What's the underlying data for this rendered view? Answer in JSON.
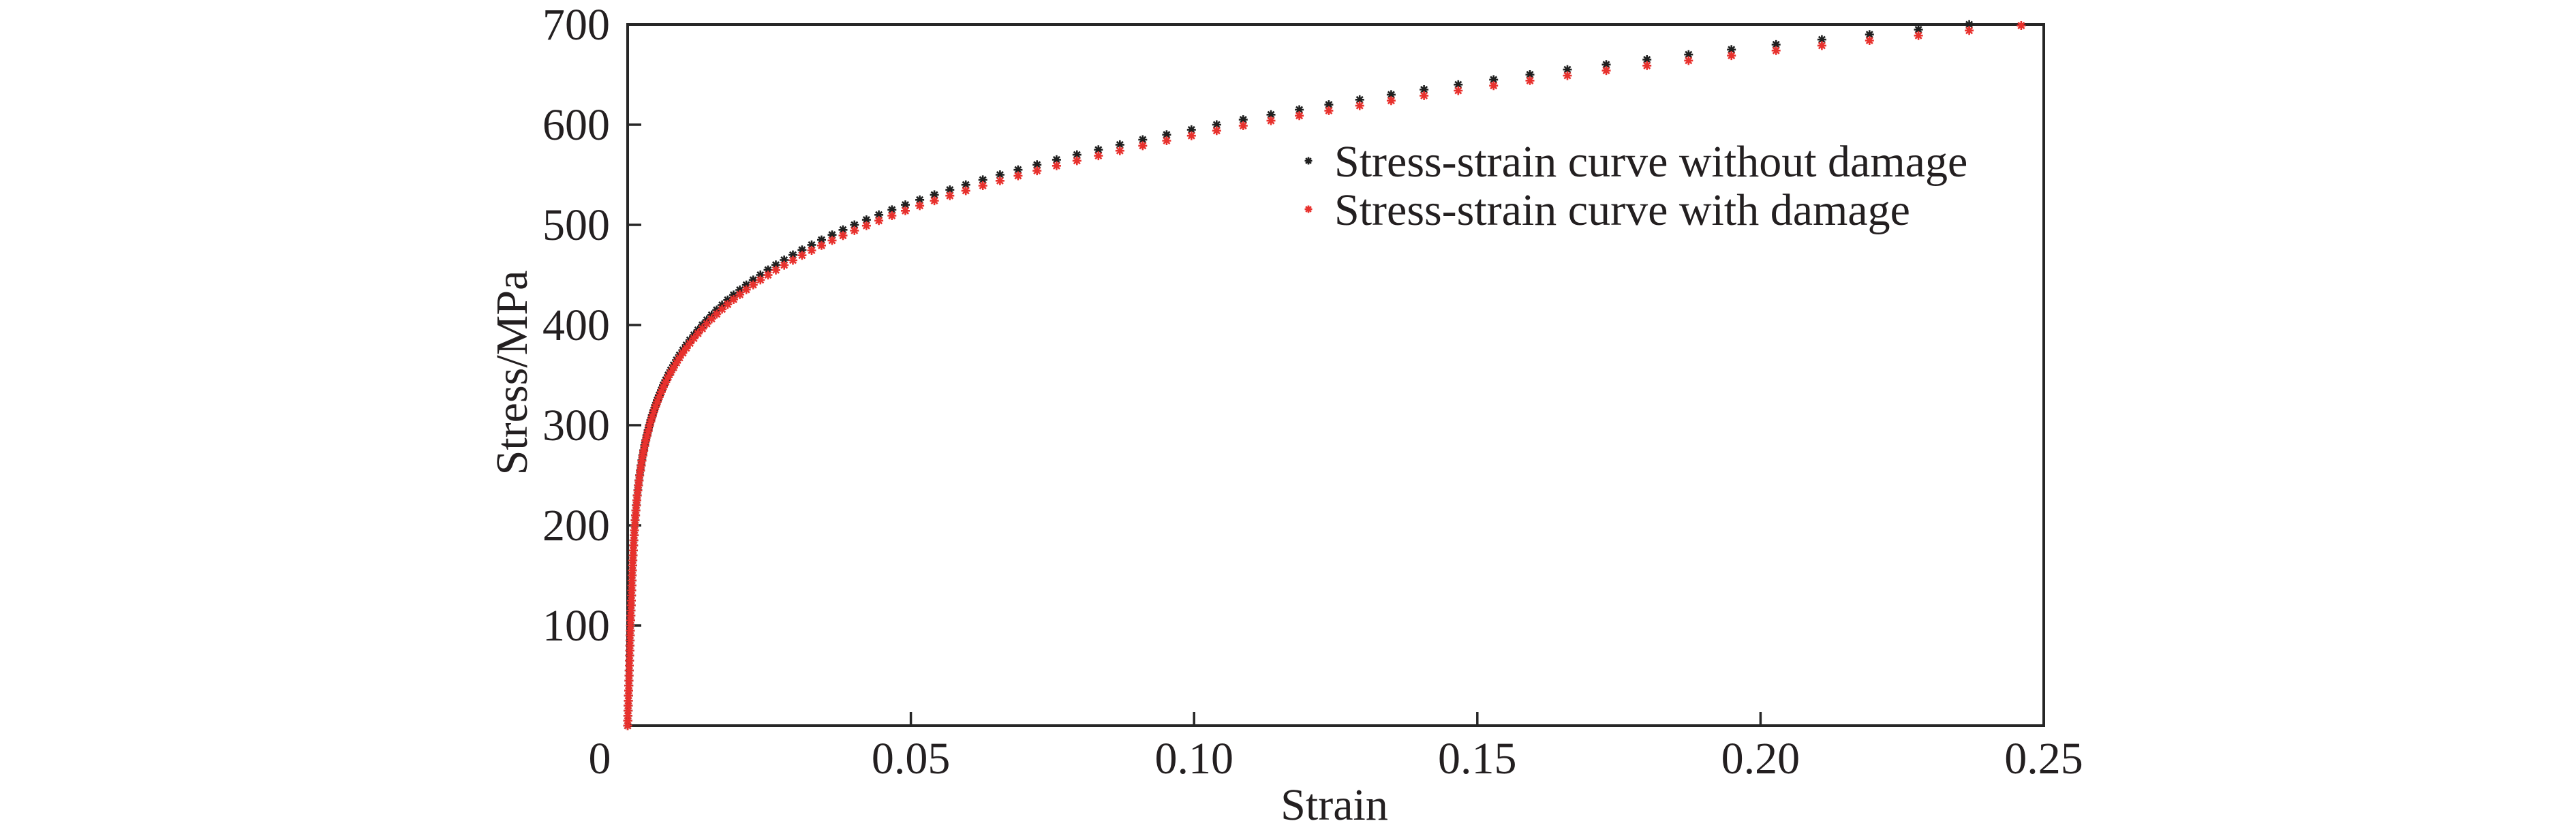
{
  "chart_data": {
    "type": "scatter",
    "title": "",
    "xlabel": "Strain",
    "ylabel": "Stress/MPa",
    "xlim": [
      0,
      0.25
    ],
    "ylim": [
      0,
      700
    ],
    "grid": false,
    "legend_position": "top-right",
    "xticks": [
      0,
      0.05,
      0.1,
      0.15,
      0.2,
      0.25
    ],
    "xtick_labels": [
      "0",
      "0.05",
      "0.10",
      "0.15",
      "0.20",
      "0.25"
    ],
    "yticks": [
      100,
      200,
      300,
      400,
      500,
      600,
      700
    ],
    "ytick_labels": [
      "100",
      "200",
      "300",
      "400",
      "500",
      "600",
      "700"
    ],
    "series": [
      {
        "name": "Stress-strain curve without damage",
        "color": "#1f1f1f",
        "marker": "asterisk",
        "x": [
          0,
          3e-05,
          5e-05,
          8e-05,
          0.0001,
          0.00013,
          0.00015,
          0.00018,
          0.0002,
          0.00023,
          0.00025,
          0.00028,
          0.0003,
          0.00033,
          0.00035,
          0.00038,
          0.0004,
          0.00043,
          0.00045,
          0.00048,
          0.0005,
          0.00053,
          0.00056,
          0.00059,
          0.00062,
          0.00065,
          0.00068,
          0.00071,
          0.00074,
          0.00077,
          0.0008,
          0.00084,
          0.00088,
          0.00092,
          0.00096,
          0.001,
          0.00105,
          0.0011,
          0.00115,
          0.0012,
          0.00126,
          0.00132,
          0.00139,
          0.00146,
          0.00154,
          0.00162,
          0.0017,
          0.0018,
          0.0019,
          0.00201,
          0.00212,
          0.00225,
          0.00238,
          0.00252,
          0.00267,
          0.00284,
          0.00301,
          0.0032,
          0.0034,
          0.00362,
          0.00384,
          0.00409,
          0.00435,
          0.00463,
          0.00493,
          0.00525,
          0.00558,
          0.00595,
          0.00632,
          0.00673,
          0.00716,
          0.00763,
          0.00811,
          0.00863,
          0.00917,
          0.00975,
          0.01036,
          0.011,
          0.01169,
          0.01242,
          0.01318,
          0.01398,
          0.01483,
          0.01573,
          0.01667,
          0.01766,
          0.01871,
          0.0198,
          0.02096,
          0.02217,
          0.02343,
          0.02478,
          0.02617,
          0.02763,
          0.02917,
          0.03079,
          0.03248,
          0.03423,
          0.03609,
          0.03802,
          0.04004,
          0.04216,
          0.04434,
          0.04665,
          0.04903,
          0.05157,
          0.05415,
          0.05688,
          0.0597,
          0.0627,
          0.06574,
          0.06893,
          0.07227,
          0.07572,
          0.07932,
          0.08311,
          0.0869,
          0.09093,
          0.09515,
          0.09953,
          0.10398,
          0.10868,
          0.11357,
          0.11857,
          0.12379,
          0.12924,
          0.13479,
          0.14059,
          0.14663,
          0.15287,
          0.15929,
          0.1659,
          0.17276,
          0.17994,
          0.18729,
          0.19486,
          0.20274,
          0.21083,
          0.21924,
          0.22788,
          0.23684
        ],
        "y": [
          0,
          5,
          10,
          15,
          20,
          25,
          30,
          35,
          40,
          45,
          50,
          55,
          60,
          65,
          70,
          75,
          80,
          85,
          90,
          95,
          100,
          105,
          110,
          115,
          120,
          125,
          130,
          135,
          140,
          145,
          150,
          155,
          160,
          165,
          170,
          175,
          180,
          185,
          190,
          195,
          200,
          205,
          210,
          215,
          220,
          225,
          230,
          235,
          240,
          245,
          250,
          255,
          260,
          265,
          270,
          275,
          280,
          285,
          290,
          295,
          300,
          305,
          310,
          315,
          320,
          325,
          330,
          335,
          340,
          345,
          350,
          355,
          360,
          365,
          370,
          375,
          380,
          385,
          390,
          395,
          400,
          405,
          410,
          415,
          420,
          425,
          430,
          435,
          440,
          445,
          450,
          455,
          460,
          465,
          470,
          475,
          480,
          485,
          490,
          495,
          500,
          505,
          510,
          515,
          520,
          525,
          530,
          535,
          540,
          545,
          550,
          555,
          560,
          565,
          570,
          575,
          580,
          585,
          590,
          595,
          600,
          605,
          610,
          615,
          620,
          625,
          630,
          635,
          640,
          645,
          650,
          655,
          660,
          665,
          670,
          675,
          680,
          685,
          690,
          695,
          700
        ]
      },
      {
        "name": "Stress-strain curve with damage",
        "color": "#e8312d",
        "marker": "asterisk",
        "x": [
          0,
          3e-05,
          5e-05,
          8e-05,
          0.0001,
          0.00013,
          0.00015,
          0.00018,
          0.0002,
          0.00023,
          0.00025,
          0.00028,
          0.0003,
          0.00033,
          0.00035,
          0.00038,
          0.0004,
          0.00043,
          0.00045,
          0.00048,
          0.0005,
          0.00053,
          0.00056,
          0.00059,
          0.00062,
          0.00065,
          0.00068,
          0.00071,
          0.00074,
          0.00077,
          0.0008,
          0.00084,
          0.00088,
          0.00092,
          0.00096,
          0.001,
          0.00105,
          0.0011,
          0.00115,
          0.0012,
          0.00126,
          0.00132,
          0.00139,
          0.00146,
          0.00154,
          0.00162,
          0.0017,
          0.0018,
          0.0019,
          0.00201,
          0.00212,
          0.00225,
          0.00238,
          0.00252,
          0.00267,
          0.00284,
          0.00301,
          0.0032,
          0.0034,
          0.00362,
          0.00384,
          0.00409,
          0.00435,
          0.00463,
          0.00493,
          0.00525,
          0.00558,
          0.00595,
          0.00632,
          0.00673,
          0.00716,
          0.00763,
          0.00811,
          0.00863,
          0.00917,
          0.00975,
          0.01036,
          0.011,
          0.01169,
          0.01242,
          0.01318,
          0.01398,
          0.01483,
          0.01573,
          0.01667,
          0.01766,
          0.01871,
          0.0198,
          0.02096,
          0.02217,
          0.02343,
          0.02478,
          0.02617,
          0.02763,
          0.02917,
          0.03079,
          0.03248,
          0.03423,
          0.03609,
          0.03802,
          0.04004,
          0.04216,
          0.04434,
          0.04665,
          0.04903,
          0.05157,
          0.05415,
          0.05688,
          0.0597,
          0.0627,
          0.06574,
          0.06893,
          0.07227,
          0.07572,
          0.07932,
          0.08311,
          0.0869,
          0.09093,
          0.09515,
          0.09953,
          0.10398,
          0.10868,
          0.11357,
          0.11857,
          0.12379,
          0.12924,
          0.13479,
          0.14059,
          0.14663,
          0.15287,
          0.15929,
          0.1659,
          0.17276,
          0.17994,
          0.18729,
          0.19486,
          0.20274,
          0.21083,
          0.21924,
          0.22788,
          0.23684,
          0.24602
        ],
        "y": [
          0,
          5,
          10,
          15,
          20,
          25,
          30,
          35,
          40,
          45,
          50,
          55,
          60,
          65,
          70,
          75,
          80,
          85,
          90,
          95,
          100,
          105,
          110,
          115,
          120,
          125,
          130,
          135,
          140,
          145,
          150,
          155,
          160,
          165,
          170,
          175,
          180,
          185,
          190,
          195,
          200,
          204.9,
          209.8,
          214.8,
          219.8,
          224.8,
          229.7,
          234.7,
          239.7,
          244.6,
          249.6,
          254.5,
          259.5,
          264.4,
          269.4,
          274.3,
          279.2,
          284.2,
          289.1,
          294.0,
          298.9,
          303.8,
          308.8,
          313.7,
          318.5,
          323.4,
          328.3,
          333.2,
          338.1,
          343.0,
          347.8,
          352.7,
          357.5,
          362.4,
          367.3,
          372.1,
          377.0,
          381.8,
          386.7,
          391.5,
          396.4,
          401.2,
          406.1,
          410.9,
          415.8,
          420.6,
          425.5,
          430.4,
          435.3,
          440.1,
          445.0,
          449.9,
          454.8,
          459.7,
          464.6,
          469.6,
          474.5,
          479.4,
          484.4,
          489.3,
          494.3,
          499.2,
          504.2,
          509.2,
          514.1,
          519.1,
          524.1,
          529.1,
          534.1,
          539.1,
          544.0,
          549.0,
          554.0,
          559.0,
          564.0,
          569.0,
          574.0,
          579.0,
          584.0,
          589.0,
          594.0,
          599.0,
          604.0,
          609.0,
          614.0,
          619.0,
          624.0,
          629.0,
          634.0,
          639.0,
          644.0,
          649.0,
          654.0,
          659.0,
          664.0,
          669.0,
          674.0,
          679.0,
          684.0,
          689.0,
          694.0,
          699.0
        ]
      }
    ]
  }
}
